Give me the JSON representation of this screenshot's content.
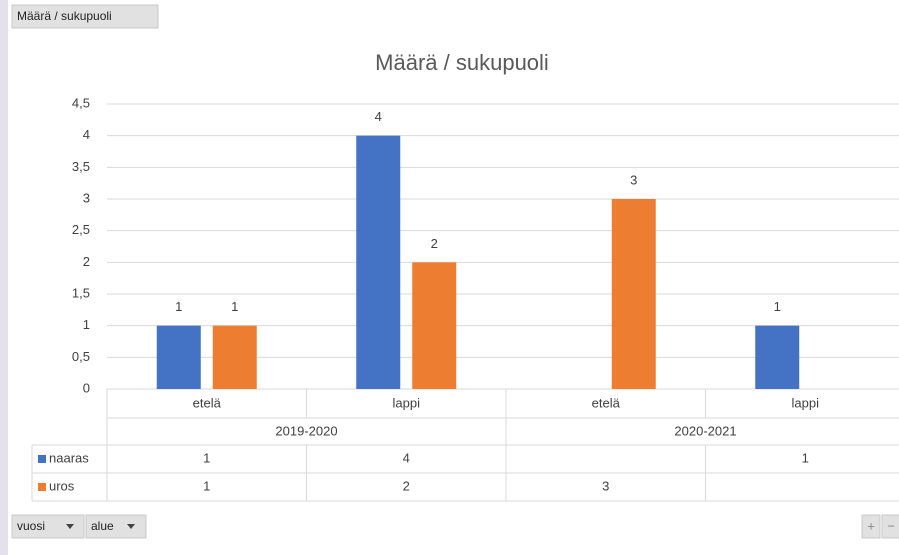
{
  "chart_data": {
    "type": "bar",
    "title": "Määrä  / sukupuoli",
    "category_groups": [
      {
        "name": "2019-2020",
        "categories": [
          "etelä",
          "lappi"
        ]
      },
      {
        "name": "2020-2021",
        "categories": [
          "etelä",
          "lappi"
        ]
      }
    ],
    "series": [
      {
        "name": "naaras",
        "color": "#4472c4",
        "values": [
          1,
          4,
          null,
          1
        ]
      },
      {
        "name": "uros",
        "color": "#ed7d31",
        "values": [
          1,
          2,
          3,
          null
        ]
      }
    ],
    "ylim": [
      0,
      4.5
    ],
    "yticks": [
      0,
      {
        "value": 0.5,
        "label": "0,5"
      },
      1,
      {
        "value": 1.5,
        "label": "1,5"
      },
      2,
      {
        "value": 2.5,
        "label": "2,5"
      },
      3,
      {
        "value": 3.5,
        "label": "3,5"
      },
      4,
      {
        "value": 4.5,
        "label": "4,5"
      }
    ],
    "grid": true,
    "data_labels": true,
    "data_table": true
  },
  "field_buttons": {
    "values": "Määrä  / sukupuoli",
    "axis": [
      "vuosi",
      "alue"
    ],
    "zoom": [
      "+",
      "−"
    ]
  }
}
